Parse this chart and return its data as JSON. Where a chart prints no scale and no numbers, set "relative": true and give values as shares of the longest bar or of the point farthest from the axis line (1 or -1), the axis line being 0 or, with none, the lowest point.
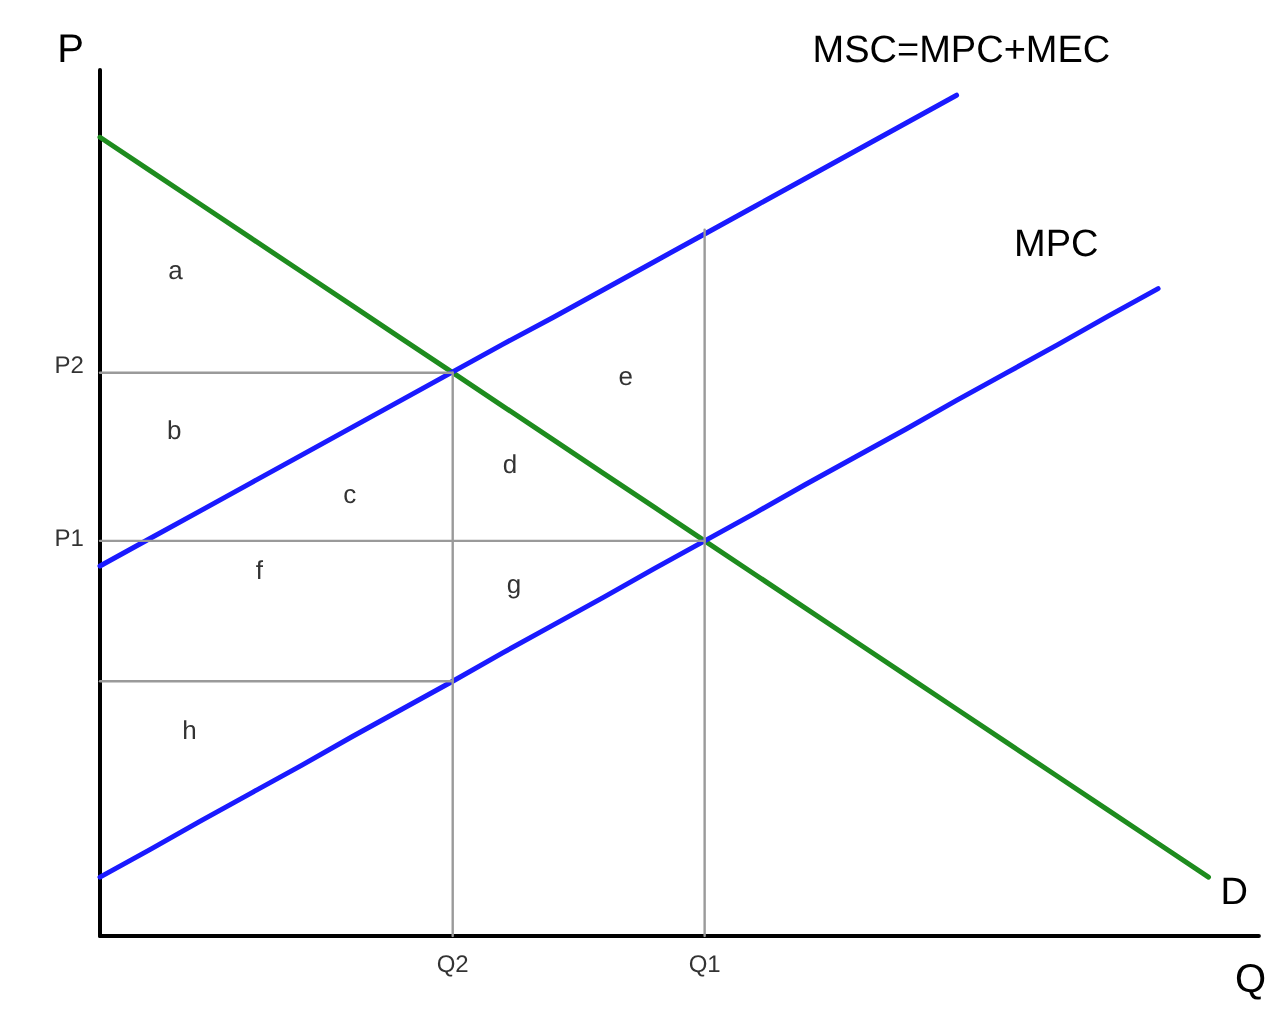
{
  "chart_data": {
    "type": "line",
    "relative": true,
    "xlabel": "Q",
    "ylabel": "P",
    "categories": [
      null,
      null,
      null,
      null,
      null,
      null,
      null,
      "Q2",
      null,
      null,
      null,
      null,
      "Q1",
      null,
      null,
      null,
      null,
      null,
      null,
      null,
      null,
      null,
      null,
      null
    ],
    "grid": false,
    "legend": false,
    "marker": "none",
    "line_style": "solid",
    "series": [
      {
        "name": "D",
        "color": "#1e8c1e",
        "values": [
          0.95,
          0.91,
          0.87,
          0.83,
          0.79,
          0.75,
          0.71,
          0.67,
          0.63,
          0.59,
          0.55,
          0.51,
          0.47,
          0.43,
          0.39,
          0.35,
          0.31,
          0.27,
          0.23,
          0.19,
          0.15,
          0.11,
          0.07,
          null
        ]
      },
      {
        "name": "MSC=MPC+MEC",
        "color": "#1a1aff",
        "values": [
          0.44,
          0.473,
          0.506,
          0.539,
          0.572,
          0.605,
          0.638,
          0.671,
          0.704,
          0.736,
          0.769,
          0.802,
          0.835,
          0.868,
          0.901,
          0.934,
          0.967,
          1,
          null,
          null,
          null,
          null,
          null,
          null
        ]
      },
      {
        "name": "MPC",
        "color": "#1a1aff",
        "values": [
          0.07,
          0.103,
          0.137,
          0.17,
          0.203,
          0.237,
          0.27,
          0.303,
          0.337,
          0.37,
          0.403,
          0.437,
          0.47,
          0.503,
          0.537,
          0.57,
          0.603,
          0.637,
          0.67,
          0.703,
          0.737,
          0.77,
          null,
          null
        ]
      },
      {
        "color": "#9a9a9a",
        "values": [
          0.67,
          0.67,
          0.67,
          0.67,
          0.67,
          0.67,
          0.67,
          0.67,
          null,
          null,
          null,
          null,
          null,
          null,
          null,
          null,
          null,
          null,
          null,
          null,
          null,
          null,
          null,
          null
        ]
      },
      {
        "color": "#9a9a9a",
        "values": [
          0.47,
          0.47,
          0.47,
          0.47,
          0.47,
          0.47,
          0.47,
          0.47,
          0.47,
          0.47,
          0.47,
          0.47,
          0.47,
          null,
          null,
          null,
          null,
          null,
          null,
          null,
          null,
          null,
          null,
          null
        ]
      },
      {
        "color": "#9a9a9a",
        "values": [
          0.303,
          0.303,
          0.303,
          0.303,
          0.303,
          0.303,
          0.303,
          0.303,
          null,
          null,
          null,
          null,
          null,
          null,
          null,
          null,
          null,
          null,
          null,
          null,
          null,
          null,
          null,
          null
        ]
      },
      {
        "color": "#9a9a9a",
        "x": [
          "Q2",
          "Q2"
        ],
        "values": [
          0,
          0.67
        ]
      },
      {
        "color": "#9a9a9a",
        "x": [
          "Q1",
          "Q1"
        ],
        "values": [
          0,
          0.84
        ]
      }
    ],
    "annotations": [
      "P2",
      "P1",
      "a",
      "b",
      "c",
      "d",
      "e",
      "f",
      "g",
      "h"
    ]
  }
}
